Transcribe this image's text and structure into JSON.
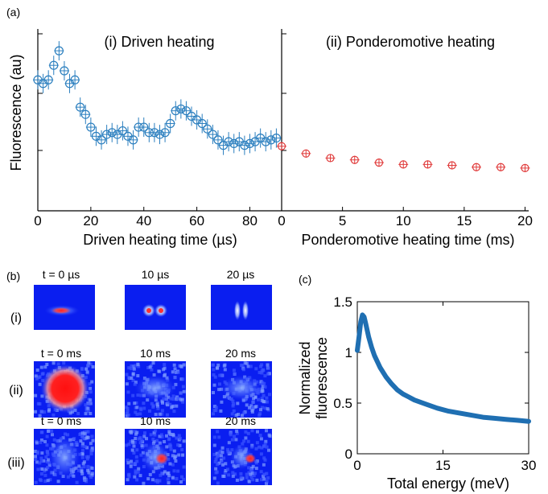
{
  "panel_a": {
    "label": "(a)",
    "ylabel": "Fluorescence (au)",
    "chart_data": [
      {
        "type": "scatter",
        "title": "(i) Driven heating",
        "xlabel": "Driven heating time (µs)",
        "xlim": [
          0,
          92
        ],
        "x_ticks": [
          "0",
          "20",
          "40",
          "60",
          "80"
        ],
        "ylim": [
          0,
          1
        ],
        "series": [
          {
            "color": "#2b7fbf",
            "marker": "circle",
            "error_bars": true,
            "x": [
              0,
              2,
              4,
              6,
              8,
              10,
              12,
              14,
              16,
              18,
              20,
              22,
              24,
              26,
              28,
              30,
              32,
              34,
              36,
              38,
              40,
              42,
              44,
              46,
              48,
              50,
              52,
              54,
              56,
              58,
              60,
              62,
              64,
              66,
              68,
              70,
              72,
              74,
              76,
              78,
              80,
              82,
              84,
              86,
              88,
              90
            ],
            "y": [
              0.72,
              0.7,
              0.72,
              0.8,
              0.88,
              0.77,
              0.7,
              0.72,
              0.57,
              0.53,
              0.46,
              0.41,
              0.39,
              0.42,
              0.43,
              0.42,
              0.44,
              0.41,
              0.39,
              0.46,
              0.46,
              0.43,
              0.43,
              0.42,
              0.43,
              0.48,
              0.55,
              0.56,
              0.55,
              0.52,
              0.5,
              0.48,
              0.45,
              0.42,
              0.39,
              0.36,
              0.38,
              0.37,
              0.38,
              0.36,
              0.37,
              0.38,
              0.4,
              0.38,
              0.39,
              0.4
            ]
          }
        ]
      },
      {
        "type": "scatter",
        "title": "(ii) Ponderomotive heating",
        "xlabel": "Ponderomotive heating time (ms)",
        "xlim": [
          0,
          20.3
        ],
        "x_ticks": [
          "0",
          "5",
          "10",
          "15",
          "20"
        ],
        "ylim": [
          0,
          1
        ],
        "series": [
          {
            "color": "#e03a3a",
            "marker": "circle",
            "error_bars": true,
            "x": [
              0,
              2,
              4,
              6,
              8,
              10,
              12,
              14,
              16,
              18,
              20
            ],
            "y": [
              0.355,
              0.315,
              0.29,
              0.28,
              0.265,
              0.255,
              0.255,
              0.25,
              0.24,
              0.24,
              0.235
            ]
          }
        ]
      }
    ]
  },
  "panel_b": {
    "label": "(b)",
    "rows": [
      {
        "label": "(i)",
        "times": [
          "t = 0 µs",
          "10 µs",
          "20 µs"
        ]
      },
      {
        "label": "(ii)",
        "times": [
          "t = 0 ms",
          "10 ms",
          "20 ms"
        ]
      },
      {
        "label": "(iii)",
        "times": [
          "t = 0 ms",
          "10 ms",
          "20 ms"
        ]
      }
    ]
  },
  "panel_c": {
    "label": "(c)",
    "chart_data": {
      "type": "line",
      "xlabel": "Total energy (meV)",
      "ylabel_line1": "Normalized",
      "ylabel_line2": "fluorescence",
      "xlim": [
        0,
        30
      ],
      "ylim": [
        0,
        1.5
      ],
      "x_ticks": [
        "0",
        "15",
        "30"
      ],
      "y_ticks": [
        "0",
        "0.5",
        "1",
        "1.5"
      ],
      "series": [
        {
          "color": "#1f6fb2",
          "x": [
            0,
            0.3,
            0.6,
            0.9,
            1.2,
            1.5,
            2,
            2.5,
            3,
            4,
            5,
            6,
            7,
            8,
            9,
            10,
            12,
            14,
            16,
            18,
            20,
            22,
            24,
            26,
            28,
            30
          ],
          "y": [
            1.02,
            1.15,
            1.3,
            1.37,
            1.35,
            1.28,
            1.15,
            1.05,
            0.97,
            0.85,
            0.76,
            0.69,
            0.63,
            0.59,
            0.56,
            0.53,
            0.49,
            0.45,
            0.42,
            0.4,
            0.38,
            0.36,
            0.35,
            0.34,
            0.33,
            0.32
          ]
        }
      ]
    }
  }
}
